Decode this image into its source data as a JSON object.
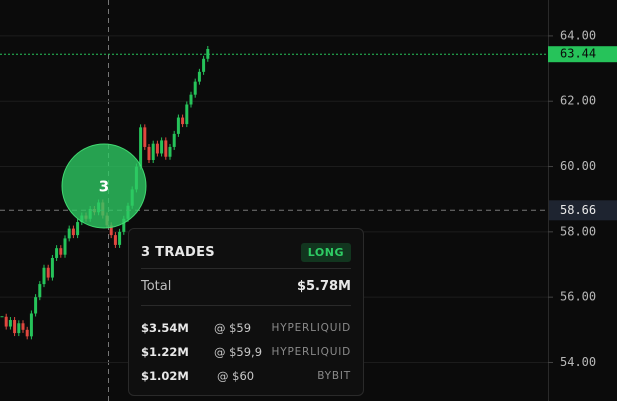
{
  "chart_data": {
    "type": "candlestick",
    "values": [
      55.4,
      55.1,
      55.3,
      54.9,
      55.2,
      55.0,
      54.8,
      55.5,
      56.0,
      56.4,
      56.9,
      56.6,
      57.2,
      57.5,
      57.3,
      57.8,
      58.1,
      57.9,
      58.3,
      58.5,
      58.4,
      58.7,
      58.6,
      58.9,
      58.5,
      58.2,
      57.9,
      57.6,
      58.0,
      58.4,
      58.8,
      59.3,
      60.0,
      61.2,
      60.6,
      60.2,
      60.7,
      60.4,
      60.8,
      60.3,
      60.6,
      61.0,
      61.5,
      61.3,
      61.9,
      62.2,
      62.6,
      62.9,
      63.3,
      63.6
    ],
    "up_color": "#26c35a",
    "down_color": "#e0483f",
    "ylim": [
      52.82,
      65.1
    ],
    "yticks": [
      {
        "value": 54,
        "label": "54.00"
      },
      {
        "value": 56,
        "label": "56.00"
      },
      {
        "value": 58,
        "label": "58.00"
      },
      {
        "value": 60,
        "label": "60.00"
      },
      {
        "value": 62,
        "label": "62.00"
      },
      {
        "value": 64,
        "label": "64.00"
      }
    ],
    "grid": true,
    "last_price": {
      "value": 63.44,
      "label": "63.44"
    },
    "crosshair_price": {
      "value": 58.66,
      "label": "58.66"
    }
  },
  "bubble": {
    "count": "3"
  },
  "tooltip": {
    "title": "3 TRADES",
    "side": "LONG",
    "total_label": "Total",
    "total": "$5.78M",
    "trades": [
      {
        "amount": "$3.54M",
        "price": "@ $59",
        "venue": "HYPERLIQUID"
      },
      {
        "amount": "$1.22M",
        "price": "@ $59,9",
        "venue": "HYPERLIQUID"
      },
      {
        "amount": "$1.02M",
        "price": "@ $60",
        "venue": "BYBIT"
      }
    ]
  }
}
